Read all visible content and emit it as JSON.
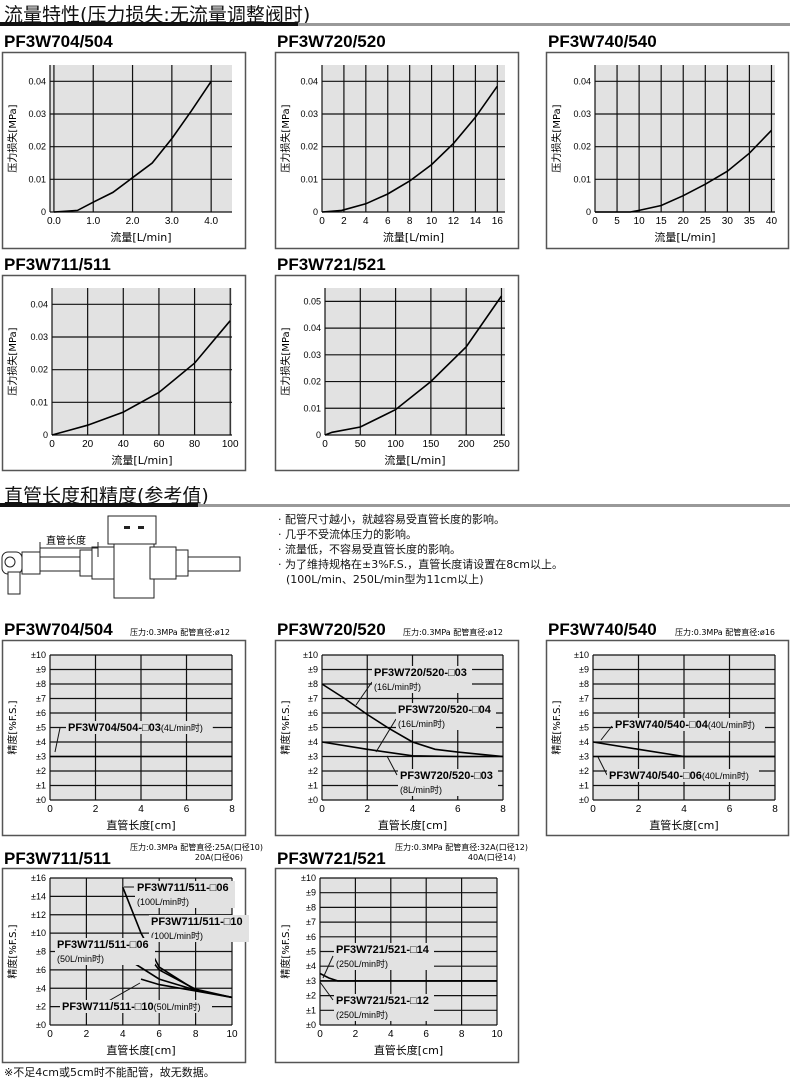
{
  "sections": [
    {
      "title": "流量特性(压力损失:无流量调整阀时)"
    },
    {
      "title": "直管长度和精度(参考值)"
    }
  ],
  "diagram": {
    "label": "直管长度"
  },
  "notes": [
    "· 配管尺寸越小，就越容易受直管长度的影响。",
    "· 几乎不受流体压力的影响。",
    "· 流量低，不容易受直管长度的影响。",
    "· 为了维持规格在±3%F.S.，直管长度请设置在8cm以上。",
    "  (100L/min、250L/min型为11cm以上)"
  ],
  "footnote": "※不足4cm或5cm时不能配管，故无数据。",
  "colors": {
    "plot_bg": "#e2e2e2",
    "grid": "#111111",
    "line": "#000000",
    "panel_border": "#555555"
  },
  "chart_data": [
    {
      "type": "line",
      "title": "PF3W704/504",
      "xlabel": "流量[L/min]",
      "ylabel": "压力损失[MPa]",
      "xlim": [
        -0.1,
        4.53
      ],
      "ylim": [
        0,
        0.045
      ],
      "xticks": [
        0,
        1,
        2,
        3,
        4
      ],
      "xtick_labels": [
        "0.0",
        "1.0",
        "2.0",
        "3.0",
        "4.0"
      ],
      "yticks": [
        0,
        0.01,
        0.02,
        0.03,
        0.04
      ],
      "ytick_labels": [
        "0",
        "0.01",
        "0.02",
        "0.03",
        "0.04"
      ],
      "grid": true,
      "series": [
        {
          "x": [
            0,
            0.6,
            1.0,
            1.5,
            2.0,
            2.5,
            3.0,
            3.5,
            4.0
          ],
          "y": [
            0,
            0.0005,
            0.003,
            0.006,
            0.0105,
            0.015,
            0.0225,
            0.031,
            0.04
          ]
        }
      ]
    },
    {
      "type": "line",
      "title": "PF3W720/520",
      "xlabel": "流量[L/min]",
      "ylabel": "压力损失[MPa]",
      "xlim": [
        0,
        16.7
      ],
      "ylim": [
        0,
        0.045
      ],
      "xticks": [
        0,
        2,
        4,
        6,
        8,
        10,
        12,
        14,
        16
      ],
      "xtick_labels": [
        "0",
        "2",
        "4",
        "6",
        "8",
        "10",
        "12",
        "14",
        "16"
      ],
      "yticks": [
        0,
        0.01,
        0.02,
        0.03,
        0.04
      ],
      "ytick_labels": [
        "0",
        "0.01",
        "0.02",
        "0.03",
        "0.04"
      ],
      "grid": true,
      "series": [
        {
          "x": [
            0,
            1.8,
            4,
            6,
            8,
            10,
            12,
            14,
            16
          ],
          "y": [
            0,
            0.0005,
            0.0025,
            0.0055,
            0.0095,
            0.0145,
            0.021,
            0.029,
            0.0385
          ]
        }
      ]
    },
    {
      "type": "line",
      "title": "PF3W740/540",
      "xlabel": "流量[L/min]",
      "ylabel": "压力损失[MPa]",
      "xlim": [
        0,
        40.8
      ],
      "ylim": [
        0,
        0.045
      ],
      "xticks": [
        0,
        5,
        10,
        15,
        20,
        25,
        30,
        35,
        40
      ],
      "xtick_labels": [
        "0",
        "5",
        "10",
        "15",
        "20",
        "25",
        "30",
        "35",
        "40"
      ],
      "yticks": [
        0,
        0.01,
        0.02,
        0.03,
        0.04
      ],
      "ytick_labels": [
        "0",
        "0.01",
        "0.02",
        "0.03",
        "0.04"
      ],
      "grid": true,
      "series": [
        {
          "x": [
            0,
            8,
            10,
            15,
            20,
            25,
            30,
            35,
            40
          ],
          "y": [
            0,
            0,
            0.0005,
            0.002,
            0.005,
            0.0085,
            0.0125,
            0.018,
            0.025
          ]
        }
      ]
    },
    {
      "type": "line",
      "title": "PF3W711/511",
      "xlabel": "流量[L/min]",
      "ylabel": "压力损失[MPa]",
      "xlim": [
        0,
        101
      ],
      "ylim": [
        0,
        0.045
      ],
      "xticks": [
        0,
        20,
        40,
        60,
        80,
        100
      ],
      "xtick_labels": [
        "0",
        "20",
        "40",
        "60",
        "80",
        "100"
      ],
      "yticks": [
        0,
        0.01,
        0.02,
        0.03,
        0.04
      ],
      "ytick_labels": [
        "0",
        "0.01",
        "0.02",
        "0.03",
        "0.04"
      ],
      "grid": true,
      "series": [
        {
          "x": [
            0,
            10,
            20,
            40,
            60,
            80,
            100
          ],
          "y": [
            0,
            0.0015,
            0.003,
            0.007,
            0.013,
            0.022,
            0.035
          ]
        }
      ]
    },
    {
      "type": "line",
      "title": "PF3W721/521",
      "xlabel": "流量[L/min]",
      "ylabel": "压力损失[MPa]",
      "xlim": [
        0,
        255
      ],
      "ylim": [
        0,
        0.055
      ],
      "xticks": [
        0,
        50,
        100,
        150,
        200,
        250
      ],
      "xtick_labels": [
        "0",
        "50",
        "100",
        "150",
        "200",
        "250"
      ],
      "yticks": [
        0,
        0.01,
        0.02,
        0.03,
        0.04,
        0.05
      ],
      "ytick_labels": [
        "0",
        "0.01",
        "0.02",
        "0.03",
        "0.04",
        "0.05"
      ],
      "grid": true,
      "series": [
        {
          "x": [
            0,
            10,
            50,
            100,
            150,
            200,
            250
          ],
          "y": [
            0,
            0.001,
            0.003,
            0.0095,
            0.02,
            0.033,
            0.052
          ]
        }
      ]
    },
    {
      "type": "line",
      "title": "PF3W704/504",
      "conditions": [
        "压力:0.3MPa   配管直径:ø12"
      ],
      "xlabel": "直管长度[cm]",
      "ylabel": "精度[%F.S.]",
      "xlim": [
        0,
        8
      ],
      "ylim": [
        0,
        10
      ],
      "xticks": [
        0,
        2,
        4,
        6,
        8
      ],
      "xtick_labels": [
        "0",
        "2",
        "4",
        "6",
        "8"
      ],
      "yticks": [
        0,
        1,
        2,
        3,
        4,
        5,
        6,
        7,
        8,
        9,
        10
      ],
      "ytick_labels": [
        "±0",
        "±1",
        "±2",
        "±3",
        "±4",
        "±5",
        "±6",
        "±7",
        "±8",
        "±9",
        "±10"
      ],
      "grid": true,
      "series": [
        {
          "x": [
            0,
            8
          ],
          "y": [
            3,
            3
          ]
        }
      ],
      "annotations": [
        {
          "bold": "PF3W704/504-□03",
          "sub": "(4L/min时)"
        }
      ]
    },
    {
      "type": "line",
      "title": "PF3W720/520",
      "conditions": [
        "压力:0.3MPa   配管直径:ø12"
      ],
      "xlabel": "直管长度[cm]",
      "ylabel": "精度[%F.S.]",
      "xlim": [
        0,
        8
      ],
      "ylim": [
        0,
        10
      ],
      "xticks": [
        0,
        2,
        4,
        6,
        8
      ],
      "xtick_labels": [
        "0",
        "2",
        "4",
        "6",
        "8"
      ],
      "yticks": [
        0,
        1,
        2,
        3,
        4,
        5,
        6,
        7,
        8,
        9,
        10
      ],
      "ytick_labels": [
        "±0",
        "±1",
        "±2",
        "±3",
        "±4",
        "±5",
        "±6",
        "±7",
        "±8",
        "±9",
        "±10"
      ],
      "grid": true,
      "series": [
        {
          "x": [
            0,
            1,
            2,
            3,
            4,
            5,
            6,
            7,
            8
          ],
          "y": [
            8,
            7,
            5.9,
            4.9,
            4.0,
            3.5,
            3.3,
            3.15,
            3
          ]
        },
        {
          "x": [
            0,
            2,
            4,
            6,
            8
          ],
          "y": [
            4,
            3.5,
            3.05,
            3,
            3
          ]
        }
      ],
      "annotations": [
        {
          "bold": "PF3W720/520-□03",
          "sub": "(16L/min时)"
        },
        {
          "bold": "PF3W720/520-□04",
          "sub": "(16L/min时)"
        },
        {
          "bold": "PF3W720/520-□03",
          "sub": "(8L/min时)"
        }
      ]
    },
    {
      "type": "line",
      "title": "PF3W740/540",
      "conditions": [
        "压力:0.3MPa   配管直径:ø16"
      ],
      "xlabel": "直管长度[cm]",
      "ylabel": "精度[%F.S.]",
      "xlim": [
        0,
        8
      ],
      "ylim": [
        0,
        10
      ],
      "xticks": [
        0,
        2,
        4,
        6,
        8
      ],
      "xtick_labels": [
        "0",
        "2",
        "4",
        "6",
        "8"
      ],
      "yticks": [
        0,
        1,
        2,
        3,
        4,
        5,
        6,
        7,
        8,
        9,
        10
      ],
      "ytick_labels": [
        "±0",
        "±1",
        "±2",
        "±3",
        "±4",
        "±5",
        "±6",
        "±7",
        "±8",
        "±9",
        "±10"
      ],
      "grid": true,
      "series": [
        {
          "x": [
            0,
            2,
            4,
            8
          ],
          "y": [
            4,
            3.5,
            3,
            3
          ]
        },
        {
          "x": [
            0,
            8
          ],
          "y": [
            3,
            3
          ]
        }
      ],
      "annotations": [
        {
          "bold": "PF3W740/540-□04",
          "sub": "(40L/min时)"
        },
        {
          "bold": "PF3W740/540-□06",
          "sub": "(40L/min时)"
        }
      ]
    },
    {
      "type": "line",
      "title": "PF3W711/511",
      "conditions": [
        "压力:0.3MPa   配管直径:25A(口径10)",
        "20A(口径06)"
      ],
      "xlabel": "直管长度[cm]",
      "ylabel": "精度[%F.S.]",
      "xlim": [
        0,
        10
      ],
      "ylim": [
        0,
        16
      ],
      "xticks": [
        0,
        2,
        4,
        6,
        8,
        10
      ],
      "xtick_labels": [
        "0",
        "2",
        "4",
        "6",
        "8",
        "10"
      ],
      "yticks": [
        0,
        2,
        4,
        6,
        8,
        10,
        12,
        14,
        16
      ],
      "ytick_labels": [
        "±0",
        "±2",
        "±4",
        "±6",
        "±8",
        "±10",
        "±12",
        "±14",
        "±16"
      ],
      "grid": true,
      "series": [
        {
          "x": [
            4,
            5,
            6,
            8,
            10
          ],
          "y": [
            15,
            10,
            6.3,
            3.8,
            3
          ]
        },
        {
          "x": [
            5,
            6,
            8,
            10
          ],
          "y": [
            8.5,
            6,
            3.9,
            3
          ]
        },
        {
          "x": [
            4,
            6,
            8,
            10
          ],
          "y": [
            7.5,
            5,
            3.8,
            3
          ]
        },
        {
          "x": [
            5,
            6,
            8,
            10
          ],
          "y": [
            5,
            4.4,
            3.7,
            3
          ]
        }
      ],
      "annotations": [
        {
          "bold": "PF3W711/511-□06",
          "sub": "(100L/min时)"
        },
        {
          "bold": "PF3W711/511-□10",
          "sub": "(100L/min时)"
        },
        {
          "bold": "PF3W711/511-□06",
          "sub": "(50L/min时)"
        },
        {
          "bold": "PF3W711/511-□10",
          "sub": "(50L/min时)"
        }
      ]
    },
    {
      "type": "line",
      "title": "PF3W721/521",
      "conditions": [
        "压力:0.3MPa   配管直径:32A(口径12)",
        "40A(口径14)"
      ],
      "xlabel": "直管长度[cm]",
      "ylabel": "精度[%F.S.]",
      "xlim": [
        0,
        10
      ],
      "ylim": [
        0,
        10
      ],
      "xticks": [
        0,
        2,
        4,
        6,
        8,
        10
      ],
      "xtick_labels": [
        "0",
        "2",
        "4",
        "6",
        "8",
        "10"
      ],
      "yticks": [
        0,
        1,
        2,
        3,
        4,
        5,
        6,
        7,
        8,
        9,
        10
      ],
      "ytick_labels": [
        "±0",
        "±1",
        "±2",
        "±3",
        "±4",
        "±5",
        "±6",
        "±7",
        "±8",
        "±9",
        "±10"
      ],
      "grid": true,
      "series": [
        {
          "x": [
            0,
            0.5,
            1,
            10
          ],
          "y": [
            3.5,
            3.2,
            3,
            3
          ]
        },
        {
          "x": [
            0,
            10
          ],
          "y": [
            3,
            3
          ]
        }
      ],
      "annotations": [
        {
          "bold": "PF3W721/521-□14",
          "sub": "(250L/min时)"
        },
        {
          "bold": "PF3W721/521-□12",
          "sub": "(250L/min时)"
        }
      ]
    }
  ]
}
